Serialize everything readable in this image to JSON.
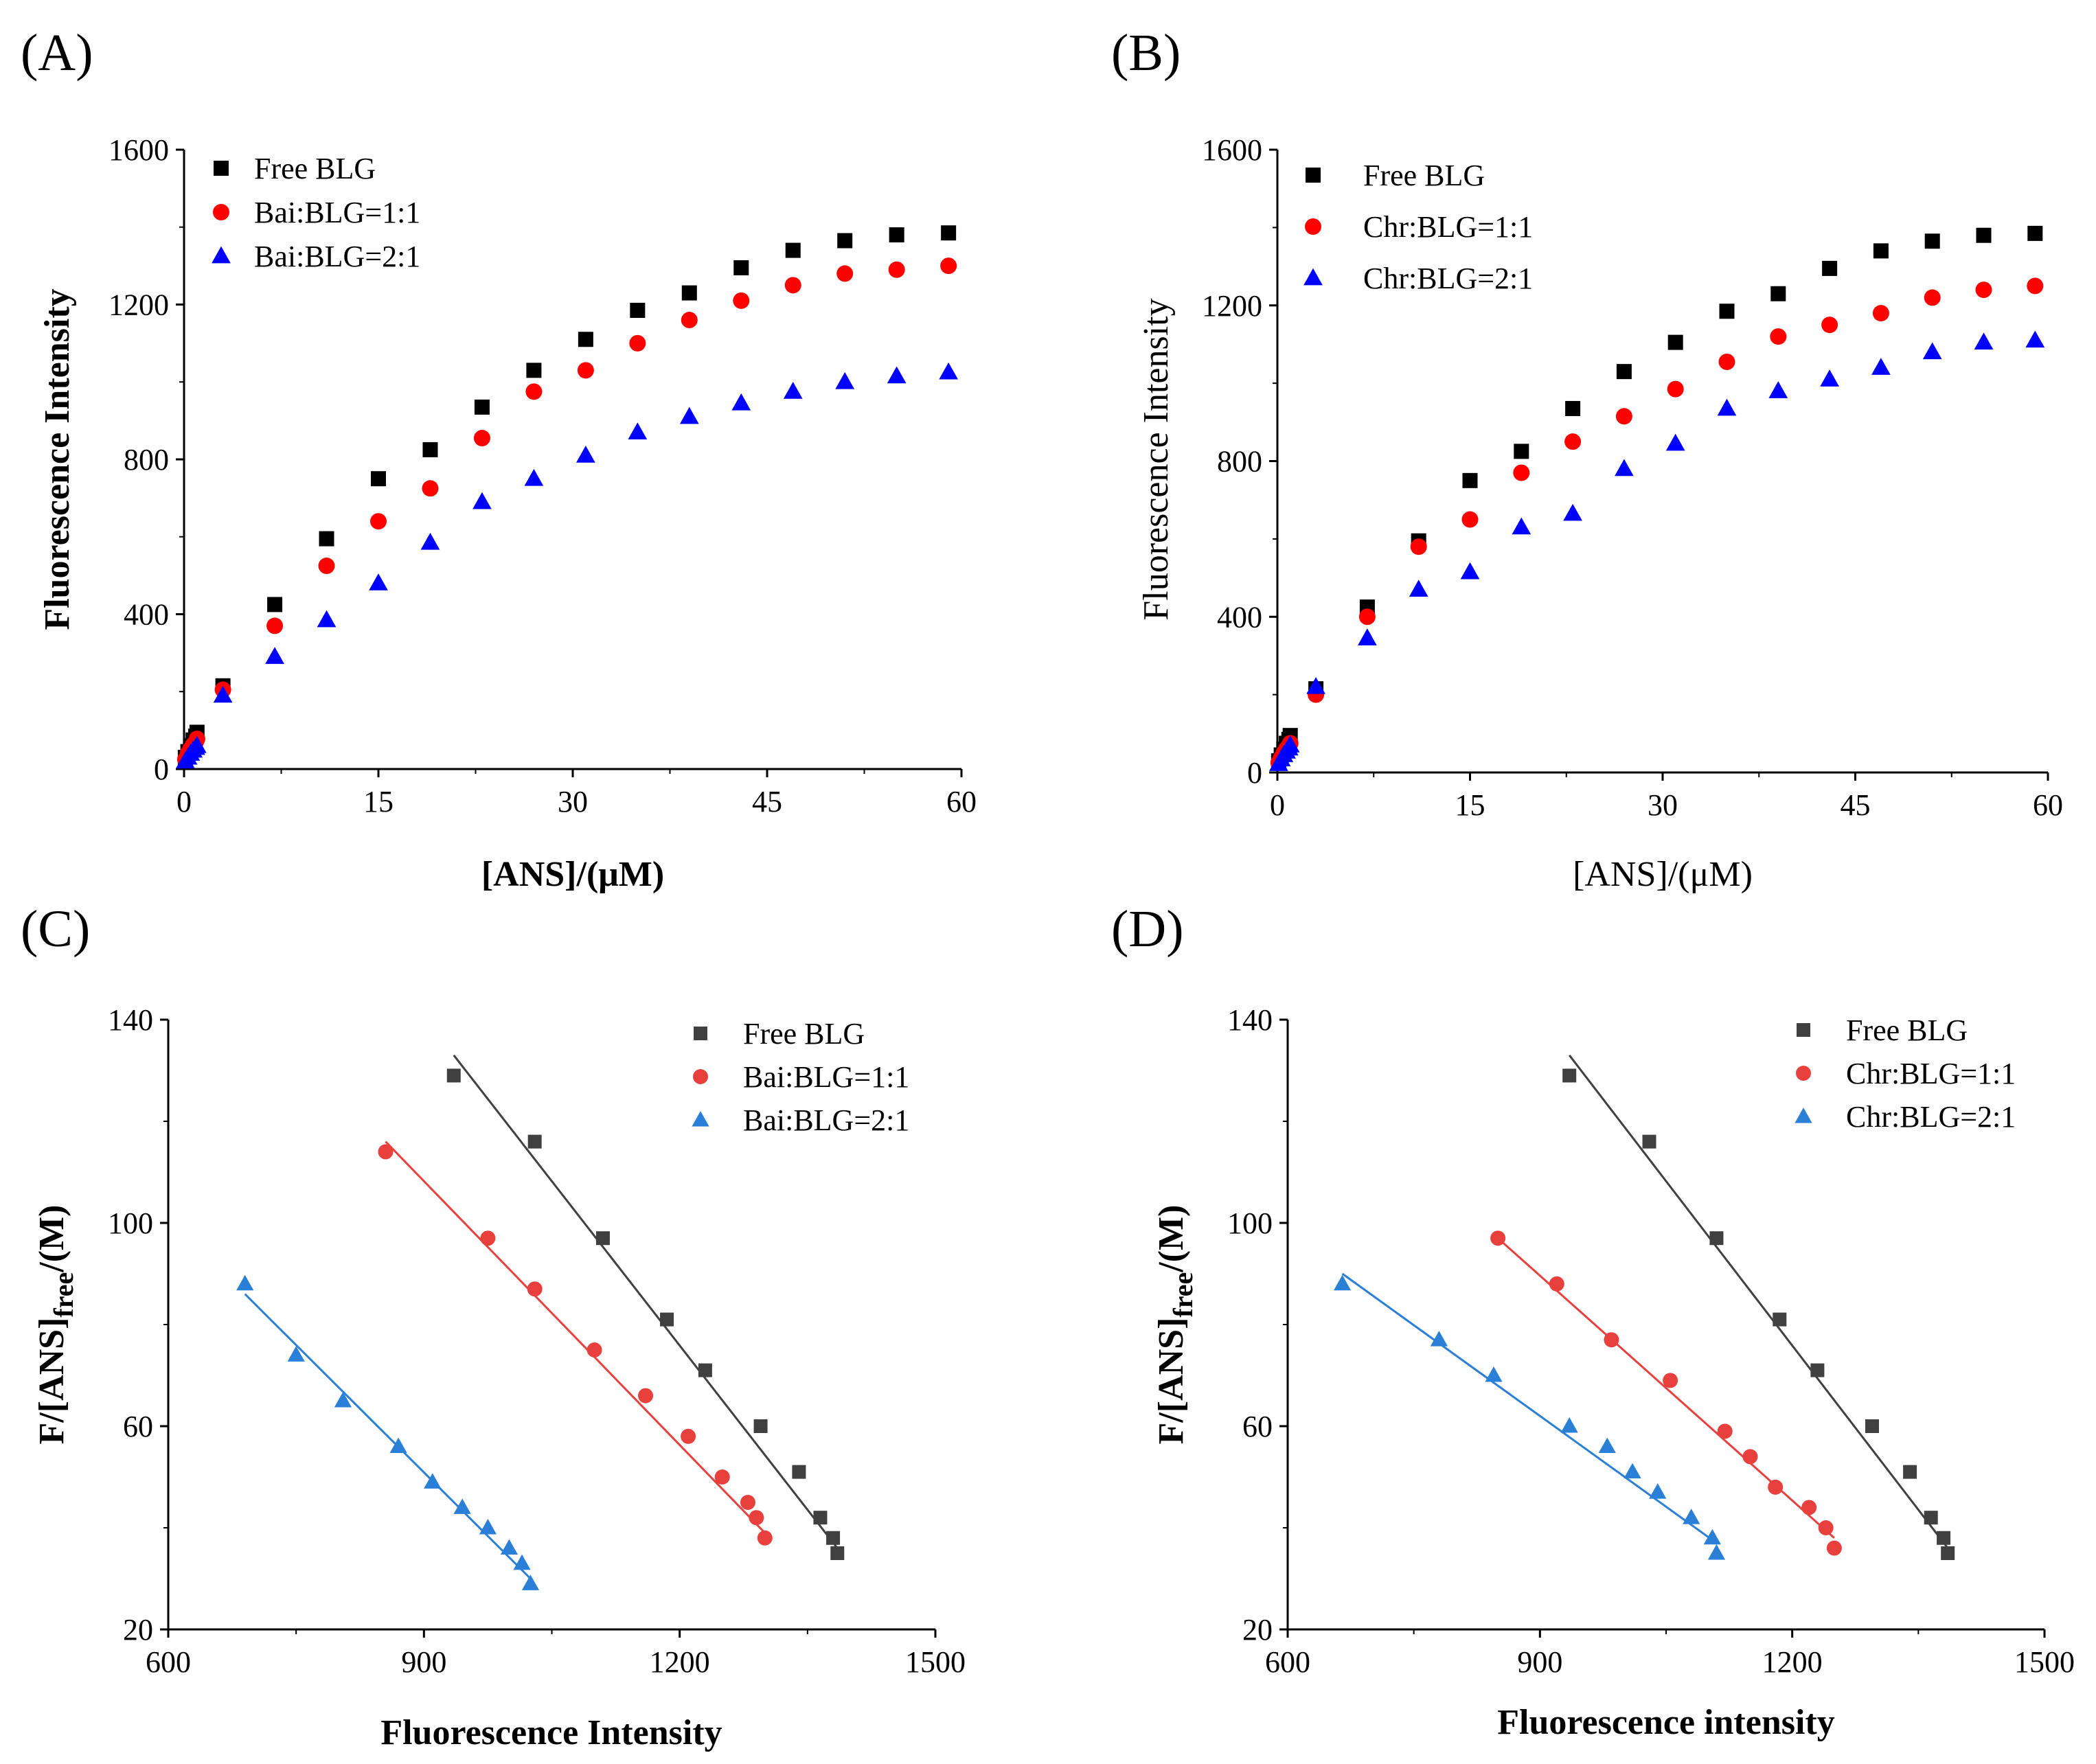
{
  "chart_data": [
    {
      "panel": "(A)",
      "type": "scatter",
      "xlabel": "[ANS]/(μM)",
      "ylabel": "Fluorescence Intensity",
      "xlim": [
        0,
        60
      ],
      "ylim": [
        0,
        1600
      ],
      "xticks": [
        0,
        15,
        30,
        45,
        60
      ],
      "yticks": [
        0,
        400,
        800,
        1200,
        1600
      ],
      "x": [
        0.1,
        0.3,
        0.5,
        0.7,
        0.9,
        1.0,
        3,
        7,
        11,
        15,
        19,
        23,
        27,
        31,
        35,
        39,
        43,
        47,
        51,
        55,
        59
      ],
      "series": [
        {
          "name": "Free BLG",
          "marker": "square",
          "color": "#000000",
          "values": [
            30,
            45,
            60,
            75,
            85,
            95,
            215,
            425,
            595,
            750,
            825,
            935,
            1030,
            1110,
            1185,
            1230,
            1295,
            1340,
            1365,
            1380,
            1385
          ]
        },
        {
          "name": "Bai:BLG=1:1",
          "marker": "circle",
          "color": "#ff0000",
          "values": [
            25,
            40,
            52,
            62,
            70,
            78,
            205,
            370,
            525,
            640,
            725,
            855,
            975,
            1030,
            1100,
            1160,
            1210,
            1250,
            1280,
            1290,
            1300
          ]
        },
        {
          "name": "Bai:BLG=2:1",
          "marker": "triangle",
          "color": "#0000ff",
          "values": [
            20,
            30,
            40,
            48,
            55,
            60,
            190,
            290,
            385,
            480,
            585,
            690,
            750,
            810,
            870,
            910,
            945,
            975,
            1000,
            1015,
            1025
          ]
        }
      ]
    },
    {
      "panel": "(B)",
      "type": "scatter",
      "xlabel": "[ANS]/(μM)",
      "ylabel": "Fluorescence Intensity",
      "xlim": [
        0,
        60
      ],
      "ylim": [
        0,
        1600
      ],
      "xticks": [
        0,
        15,
        30,
        45,
        60
      ],
      "yticks": [
        0,
        400,
        800,
        1200,
        1600
      ],
      "x": [
        0.1,
        0.3,
        0.5,
        0.7,
        0.9,
        1.0,
        3,
        7,
        11,
        15,
        19,
        23,
        27,
        31,
        35,
        39,
        43,
        47,
        51,
        55,
        59
      ],
      "series": [
        {
          "name": "Free BLG",
          "marker": "square",
          "color": "#000000",
          "values": [
            30,
            45,
            60,
            75,
            85,
            95,
            215,
            425,
            595,
            750,
            825,
            935,
            1030,
            1105,
            1185,
            1230,
            1295,
            1340,
            1365,
            1380,
            1385
          ]
        },
        {
          "name": "Chr:BLG=1:1",
          "marker": "circle",
          "color": "#ff0000",
          "values": [
            25,
            38,
            50,
            60,
            68,
            75,
            200,
            400,
            580,
            650,
            770,
            850,
            915,
            985,
            1055,
            1120,
            1150,
            1180,
            1220,
            1240,
            1250
          ]
        },
        {
          "name": "Chr:BLG=2:1",
          "marker": "triangle",
          "color": "#0000ff",
          "values": [
            22,
            34,
            45,
            54,
            62,
            70,
            220,
            345,
            470,
            515,
            630,
            665,
            780,
            845,
            935,
            980,
            1010,
            1040,
            1080,
            1105,
            1110
          ]
        }
      ]
    },
    {
      "panel": "(C)",
      "type": "scatter",
      "xlabel": "Fluorescence Intensity",
      "ylabel_parts": {
        "pre": "F/[ANS]",
        "sub": "free",
        "post": "/(M)"
      },
      "xlim": [
        600,
        1500
      ],
      "ylim": [
        20,
        140
      ],
      "xticks": [
        600,
        900,
        1200,
        1500
      ],
      "yticks": [
        20,
        60,
        100,
        140
      ],
      "series": [
        {
          "name": "Free BLG",
          "marker": "square",
          "color": "#404040",
          "x": [
            935,
            1030,
            1110,
            1185,
            1230,
            1295,
            1340,
            1365,
            1380,
            1385
          ],
          "values": [
            129,
            116,
            97,
            81,
            71,
            60,
            51,
            42,
            38,
            35
          ],
          "fit": {
            "x": [
              935,
              1385
            ],
            "y": [
              133,
              36
            ]
          }
        },
        {
          "name": "Bai:BLG=1:1",
          "marker": "circle",
          "color": "#e8403c",
          "x": [
            855,
            975,
            1030,
            1100,
            1160,
            1210,
            1250,
            1280,
            1290,
            1300
          ],
          "values": [
            114,
            97,
            87,
            75,
            66,
            58,
            50,
            45,
            42,
            38
          ],
          "fit": {
            "x": [
              855,
              1300
            ],
            "y": [
              116,
              39
            ]
          }
        },
        {
          "name": "Bai:BLG=2:1",
          "marker": "triangle",
          "color": "#2a7fd6",
          "x": [
            690,
            750,
            805,
            870,
            910,
            945,
            975,
            1000,
            1015,
            1025
          ],
          "values": [
            88,
            74,
            65,
            56,
            49,
            44,
            40,
            36,
            33,
            29
          ],
          "fit": {
            "x": [
              690,
              1025
            ],
            "y": [
              86,
              30
            ]
          }
        }
      ]
    },
    {
      "panel": "(D)",
      "type": "scatter",
      "xlabel": "Fluorescence intensity",
      "ylabel_parts": {
        "pre": "F/[ANS]",
        "sub": "free",
        "post": "/(M)"
      },
      "xlim": [
        600,
        1500
      ],
      "ylim": [
        20,
        140
      ],
      "xticks": [
        600,
        900,
        1200,
        1500
      ],
      "yticks": [
        20,
        60,
        100,
        140
      ],
      "series": [
        {
          "name": "Free BLG",
          "marker": "square",
          "color": "#404040",
          "x": [
            935,
            1030,
            1110,
            1185,
            1230,
            1295,
            1340,
            1365,
            1380,
            1385
          ],
          "values": [
            129,
            116,
            97,
            81,
            71,
            60,
            51,
            42,
            38,
            35
          ],
          "fit": {
            "x": [
              935,
              1385
            ],
            "y": [
              133,
              36
            ]
          }
        },
        {
          "name": "Chr:BLG=1:1",
          "marker": "circle",
          "color": "#e8403c",
          "x": [
            850,
            920,
            985,
            1055,
            1120,
            1150,
            1180,
            1220,
            1240,
            1250
          ],
          "values": [
            97,
            88,
            77,
            69,
            59,
            54,
            48,
            44,
            40,
            36
          ],
          "fit": {
            "x": [
              850,
              1250
            ],
            "y": [
              97,
              38
            ]
          }
        },
        {
          "name": "Chr:BLG=2:1",
          "marker": "triangle",
          "color": "#2a7fd6",
          "x": [
            665,
            780,
            845,
            935,
            980,
            1010,
            1040,
            1080,
            1105,
            1110
          ],
          "values": [
            88,
            77,
            70,
            60,
            56,
            51,
            47,
            42,
            38,
            35
          ],
          "fit": {
            "x": [
              665,
              1110
            ],
            "y": [
              90,
              37
            ]
          }
        }
      ]
    }
  ]
}
